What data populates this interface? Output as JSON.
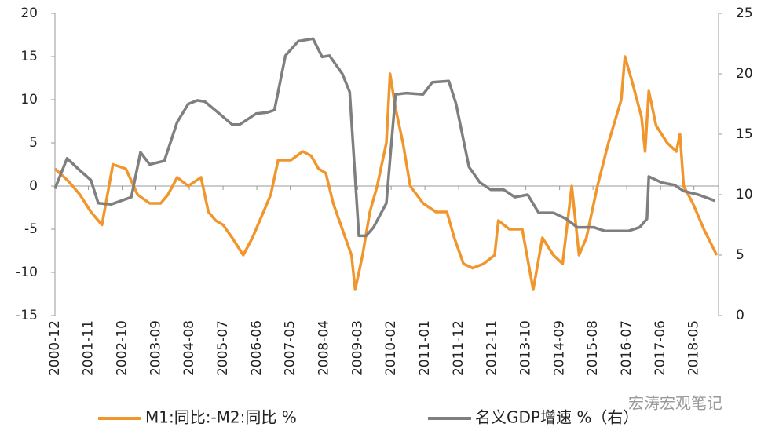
{
  "chart_data": {
    "type": "line",
    "xlim": [
      2000.92,
      2019.0
    ],
    "xticks": [
      {
        "value": 2000.92,
        "label": "2000-12"
      },
      {
        "value": 2001.83,
        "label": "2001-11"
      },
      {
        "value": 2002.75,
        "label": "2002-10"
      },
      {
        "value": 2003.67,
        "label": "2003-09"
      },
      {
        "value": 2004.58,
        "label": "2004-08"
      },
      {
        "value": 2005.5,
        "label": "2005-07"
      },
      {
        "value": 2006.42,
        "label": "2006-06"
      },
      {
        "value": 2007.33,
        "label": "2007-05"
      },
      {
        "value": 2008.25,
        "label": "2008-04"
      },
      {
        "value": 2009.17,
        "label": "2009-03"
      },
      {
        "value": 2010.08,
        "label": "2010-02"
      },
      {
        "value": 2011.0,
        "label": "2011-01"
      },
      {
        "value": 2011.92,
        "label": "2011-12"
      },
      {
        "value": 2012.83,
        "label": "2012-11"
      },
      {
        "value": 2013.75,
        "label": "2013-10"
      },
      {
        "value": 2014.67,
        "label": "2014-09"
      },
      {
        "value": 2015.58,
        "label": "2015-08"
      },
      {
        "value": 2016.5,
        "label": "2016-07"
      },
      {
        "value": 2017.42,
        "label": "2017-06"
      },
      {
        "value": 2018.33,
        "label": "2018-05"
      }
    ],
    "ylim": [
      -15,
      20
    ],
    "yticks": [
      -15,
      -10,
      -5,
      0,
      5,
      10,
      15,
      20
    ],
    "y2lim": [
      0,
      25
    ],
    "y2ticks": [
      0,
      5,
      10,
      15,
      20,
      25
    ],
    "series": [
      {
        "name": "M1:同比:-M2:同比 %",
        "color": "#f0962d",
        "x": [
          2000.92,
          2001.3,
          2001.6,
          2001.9,
          2002.2,
          2002.5,
          2002.85,
          2003.17,
          2003.5,
          2003.8,
          2004.0,
          2004.25,
          2004.55,
          2004.9,
          2005.1,
          2005.3,
          2005.5,
          2005.75,
          2006.05,
          2006.3,
          2006.6,
          2006.8,
          2007.0,
          2007.35,
          2007.67,
          2007.9,
          2008.1,
          2008.3,
          2008.5,
          2008.75,
          2009.0,
          2009.1,
          2009.3,
          2009.5,
          2009.7,
          2009.95,
          2010.05,
          2010.2,
          2010.4,
          2010.6,
          2010.95,
          2011.3,
          2011.6,
          2011.8,
          2012.05,
          2012.3,
          2012.6,
          2012.9,
          2013.0,
          2013.3,
          2013.65,
          2013.95,
          2014.2,
          2014.5,
          2014.75,
          2015.0,
          2015.2,
          2015.4,
          2015.7,
          2016.0,
          2016.35,
          2016.45,
          2016.65,
          2016.9,
          2017.0,
          2017.1,
          2017.3,
          2017.6,
          2017.85,
          2017.95,
          2018.05,
          2018.3,
          2018.6,
          2018.95
        ],
        "values": [
          2,
          0.5,
          -1,
          -3,
          -4.5,
          2.5,
          2,
          -1,
          -2,
          -2,
          -1,
          1,
          0,
          1,
          -3,
          -4,
          -4.5,
          -6,
          -8,
          -6,
          -3,
          -1,
          3,
          3,
          4,
          3.5,
          2,
          1.5,
          -2,
          -5,
          -8,
          -12,
          -8,
          -3,
          0,
          5,
          13,
          9,
          5,
          0,
          -2,
          -3,
          -3,
          -6,
          -9,
          -9.5,
          -9,
          -8,
          -4,
          -5,
          -5,
          -12,
          -6,
          -8,
          -9,
          0,
          -8,
          -6,
          0,
          5,
          10,
          15,
          12,
          8,
          4,
          11,
          7,
          5,
          4,
          6,
          0,
          -2,
          -5,
          -8
        ]
      },
      {
        "name": "名义GDP增速 %（右）",
        "color": "#7f7f7f",
        "axis": "y2",
        "x": [
          2000.92,
          2001.25,
          2001.6,
          2001.9,
          2002.1,
          2002.45,
          2003.0,
          2003.25,
          2003.5,
          2003.9,
          2004.25,
          2004.55,
          2004.8,
          2005.0,
          2005.4,
          2005.75,
          2005.95,
          2006.4,
          2006.7,
          2006.9,
          2007.2,
          2007.55,
          2007.95,
          2008.2,
          2008.4,
          2008.75,
          2008.95,
          2009.2,
          2009.4,
          2009.6,
          2009.95,
          2010.2,
          2010.5,
          2010.95,
          2011.2,
          2011.65,
          2011.85,
          2012.2,
          2012.5,
          2012.8,
          2013.15,
          2013.45,
          2013.8,
          2014.1,
          2014.5,
          2014.85,
          2015.15,
          2015.6,
          2015.9,
          2016.55,
          2016.85,
          2017.05,
          2017.1,
          2017.45,
          2017.8,
          2018.05,
          2018.45,
          2018.9
        ],
        "values": [
          10.5,
          13,
          12,
          11.2,
          9.3,
          9.2,
          9.8,
          13.5,
          12.5,
          12.8,
          16,
          17.5,
          17.8,
          17.7,
          16.7,
          15.8,
          15.8,
          16.7,
          16.8,
          17,
          21.5,
          22.7,
          22.9,
          21.4,
          21.5,
          20,
          18.5,
          6.6,
          6.6,
          7.3,
          9.3,
          18.3,
          18.4,
          18.3,
          19.3,
          19.4,
          17.5,
          12.3,
          11,
          10.4,
          10.4,
          9.8,
          10,
          8.5,
          8.5,
          8,
          7.3,
          7.3,
          7,
          7,
          7.3,
          8,
          11.5,
          11,
          10.8,
          10.3,
          10,
          9.5
        ]
      }
    ],
    "watermark": "宏涛宏观笔记"
  }
}
